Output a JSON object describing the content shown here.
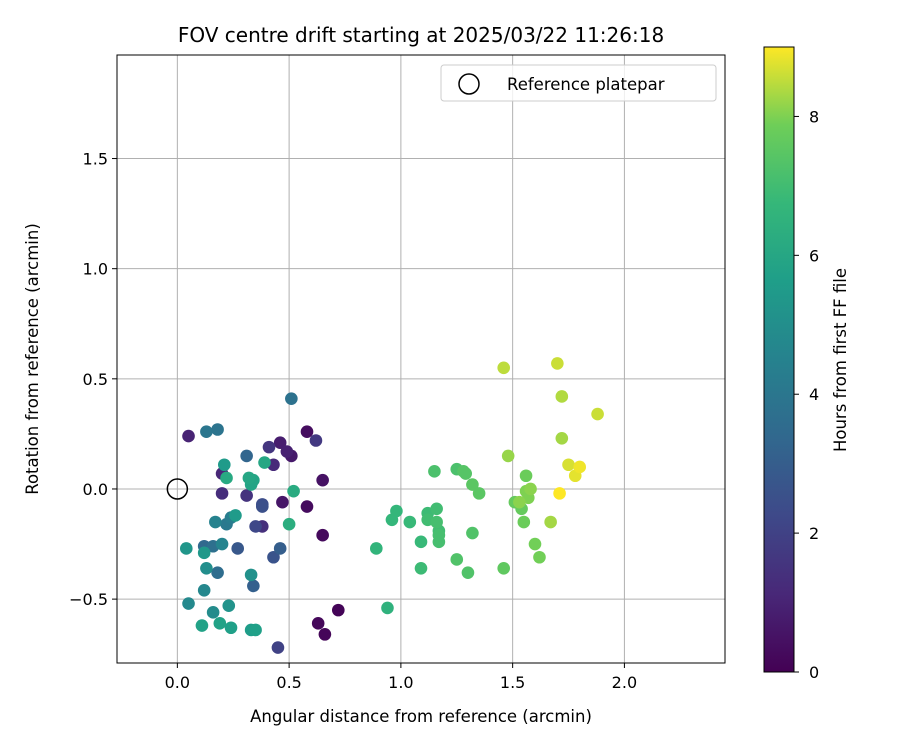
{
  "chart_data": {
    "type": "scatter",
    "title": "FOV centre drift starting at 2025/03/22 11:26:18",
    "xlabel": "Angular distance from reference (arcmin)",
    "ylabel": "Rotation from reference (arcmin)",
    "colorbar_label": "Hours from first FF file",
    "xlim": [
      -0.27,
      2.45
    ],
    "ylim": [
      -0.79,
      1.97
    ],
    "clim": [
      0,
      9
    ],
    "colormap": "viridis",
    "grid": true,
    "legend_position": "upper right",
    "x_ticks": [
      0.0,
      0.5,
      1.0,
      1.5,
      2.0
    ],
    "x_tick_labels": [
      "0.0",
      "0.5",
      "1.0",
      "1.5",
      "2.0"
    ],
    "y_ticks": [
      -0.5,
      0.0,
      0.5,
      1.0,
      1.5
    ],
    "y_tick_labels": [
      "−0.5",
      "0.0",
      "0.5",
      "1.0",
      "1.5"
    ],
    "colorbar_ticks": [
      0,
      2,
      4,
      6,
      8
    ],
    "colorbar_tick_labels": [
      "0",
      "2",
      "4",
      "6",
      "8"
    ],
    "reference": {
      "label": "Reference platepar",
      "x": 0.0,
      "y": 0.0
    },
    "points": [
      {
        "x": 0.72,
        "y": -0.55,
        "h": 0.1
      },
      {
        "x": 0.66,
        "y": -0.66,
        "h": 0.15
      },
      {
        "x": 0.63,
        "y": -0.61,
        "h": 0.2
      },
      {
        "x": 0.65,
        "y": -0.21,
        "h": 0.25
      },
      {
        "x": 0.58,
        "y": -0.08,
        "h": 0.3
      },
      {
        "x": 0.58,
        "y": 0.26,
        "h": 0.35
      },
      {
        "x": 0.65,
        "y": 0.04,
        "h": 0.5
      },
      {
        "x": 0.47,
        "y": -0.06,
        "h": 0.6
      },
      {
        "x": 0.51,
        "y": 0.15,
        "h": 0.7
      },
      {
        "x": 0.46,
        "y": 0.21,
        "h": 0.8
      },
      {
        "x": 0.49,
        "y": 0.17,
        "h": 0.9
      },
      {
        "x": 0.05,
        "y": 0.24,
        "h": 1.0
      },
      {
        "x": 0.2,
        "y": 0.07,
        "h": 1.1
      },
      {
        "x": 0.43,
        "y": 0.11,
        "h": 1.2
      },
      {
        "x": 0.2,
        "y": -0.02,
        "h": 1.3
      },
      {
        "x": 0.38,
        "y": -0.17,
        "h": 1.4
      },
      {
        "x": 0.31,
        "y": -0.03,
        "h": 1.5
      },
      {
        "x": 0.41,
        "y": 0.19,
        "h": 1.6
      },
      {
        "x": 0.62,
        "y": 0.22,
        "h": 1.7
      },
      {
        "x": 0.45,
        "y": -0.72,
        "h": 2.0
      },
      {
        "x": 0.35,
        "y": -0.17,
        "h": 2.2
      },
      {
        "x": 0.38,
        "y": -0.07,
        "h": 2.4
      },
      {
        "x": 0.38,
        "y": -0.08,
        "h": 2.5
      },
      {
        "x": 0.43,
        "y": -0.31,
        "h": 2.6
      },
      {
        "x": 0.27,
        "y": -0.27,
        "h": 2.8
      },
      {
        "x": 0.46,
        "y": -0.27,
        "h": 3.0
      },
      {
        "x": 0.34,
        "y": -0.44,
        "h": 3.1
      },
      {
        "x": 0.31,
        "y": 0.15,
        "h": 3.3
      },
      {
        "x": 0.12,
        "y": -0.26,
        "h": 3.4
      },
      {
        "x": 0.18,
        "y": -0.38,
        "h": 3.6
      },
      {
        "x": 0.16,
        "y": -0.26,
        "h": 3.7
      },
      {
        "x": 0.51,
        "y": 0.41,
        "h": 3.8
      },
      {
        "x": 0.18,
        "y": 0.27,
        "h": 3.9
      },
      {
        "x": 0.13,
        "y": 0.26,
        "h": 4.0
      },
      {
        "x": 0.22,
        "y": -0.16,
        "h": 4.1
      },
      {
        "x": 0.24,
        "y": -0.13,
        "h": 4.3
      },
      {
        "x": 0.17,
        "y": -0.15,
        "h": 4.5
      },
      {
        "x": 0.2,
        "y": -0.25,
        "h": 4.6
      },
      {
        "x": 0.12,
        "y": -0.46,
        "h": 4.7
      },
      {
        "x": 0.05,
        "y": -0.52,
        "h": 4.8
      },
      {
        "x": 0.16,
        "y": -0.56,
        "h": 4.9
      },
      {
        "x": 0.13,
        "y": -0.36,
        "h": 5.0
      },
      {
        "x": 0.33,
        "y": -0.39,
        "h": 5.1
      },
      {
        "x": 0.23,
        "y": -0.53,
        "h": 5.2
      },
      {
        "x": 0.04,
        "y": -0.27,
        "h": 5.3
      },
      {
        "x": 0.12,
        "y": -0.29,
        "h": 5.4
      },
      {
        "x": 0.21,
        "y": 0.11,
        "h": 5.5
      },
      {
        "x": 0.26,
        "y": -0.12,
        "h": 5.5
      },
      {
        "x": 0.33,
        "y": -0.64,
        "h": 5.6
      },
      {
        "x": 0.35,
        "y": -0.64,
        "h": 5.7
      },
      {
        "x": 0.24,
        "y": -0.63,
        "h": 5.7
      },
      {
        "x": 0.19,
        "y": -0.61,
        "h": 5.8
      },
      {
        "x": 0.11,
        "y": -0.62,
        "h": 5.8
      },
      {
        "x": 0.33,
        "y": 0.02,
        "h": 5.9
      },
      {
        "x": 0.34,
        "y": 0.04,
        "h": 5.9
      },
      {
        "x": 0.32,
        "y": 0.05,
        "h": 6.0
      },
      {
        "x": 0.39,
        "y": 0.12,
        "h": 6.0
      },
      {
        "x": 0.22,
        "y": 0.05,
        "h": 6.1
      },
      {
        "x": 0.52,
        "y": -0.01,
        "h": 6.2
      },
      {
        "x": 0.5,
        "y": -0.16,
        "h": 6.3
      },
      {
        "x": 0.94,
        "y": -0.54,
        "h": 6.5
      },
      {
        "x": 0.89,
        "y": -0.27,
        "h": 6.6
      },
      {
        "x": 0.96,
        "y": -0.14,
        "h": 6.7
      },
      {
        "x": 0.98,
        "y": -0.1,
        "h": 6.7
      },
      {
        "x": 1.04,
        "y": -0.15,
        "h": 6.8
      },
      {
        "x": 1.09,
        "y": -0.24,
        "h": 6.8
      },
      {
        "x": 1.09,
        "y": -0.36,
        "h": 6.9
      },
      {
        "x": 1.12,
        "y": -0.11,
        "h": 6.9
      },
      {
        "x": 1.12,
        "y": -0.14,
        "h": 7.0
      },
      {
        "x": 1.16,
        "y": -0.09,
        "h": 7.0
      },
      {
        "x": 1.17,
        "y": -0.19,
        "h": 7.0
      },
      {
        "x": 1.17,
        "y": -0.24,
        "h": 7.1
      },
      {
        "x": 1.16,
        "y": -0.15,
        "h": 7.1
      },
      {
        "x": 1.17,
        "y": -0.21,
        "h": 7.1
      },
      {
        "x": 1.15,
        "y": 0.08,
        "h": 7.2
      },
      {
        "x": 1.25,
        "y": 0.09,
        "h": 7.2
      },
      {
        "x": 1.25,
        "y": -0.32,
        "h": 7.3
      },
      {
        "x": 1.3,
        "y": -0.38,
        "h": 7.3
      },
      {
        "x": 1.32,
        "y": -0.2,
        "h": 7.3
      },
      {
        "x": 1.29,
        "y": 0.07,
        "h": 7.4
      },
      {
        "x": 1.28,
        "y": 0.08,
        "h": 7.4
      },
      {
        "x": 1.32,
        "y": 0.02,
        "h": 7.5
      },
      {
        "x": 1.35,
        "y": -0.02,
        "h": 7.5
      },
      {
        "x": 1.46,
        "y": -0.36,
        "h": 7.6
      },
      {
        "x": 1.51,
        "y": -0.06,
        "h": 7.7
      },
      {
        "x": 1.54,
        "y": -0.09,
        "h": 7.7
      },
      {
        "x": 1.55,
        "y": -0.15,
        "h": 7.8
      },
      {
        "x": 1.56,
        "y": 0.06,
        "h": 7.8
      },
      {
        "x": 1.6,
        "y": -0.25,
        "h": 7.9
      },
      {
        "x": 1.62,
        "y": -0.31,
        "h": 7.9
      },
      {
        "x": 1.56,
        "y": -0.01,
        "h": 8.0
      },
      {
        "x": 1.57,
        "y": -0.04,
        "h": 8.0
      },
      {
        "x": 1.53,
        "y": -0.06,
        "h": 8.1
      },
      {
        "x": 1.58,
        "y": 0.0,
        "h": 8.1
      },
      {
        "x": 1.48,
        "y": 0.15,
        "h": 8.2
      },
      {
        "x": 1.67,
        "y": -0.15,
        "h": 8.3
      },
      {
        "x": 1.72,
        "y": 0.23,
        "h": 8.3
      },
      {
        "x": 1.72,
        "y": 0.42,
        "h": 8.4
      },
      {
        "x": 1.46,
        "y": 0.55,
        "h": 8.5
      },
      {
        "x": 1.7,
        "y": 0.57,
        "h": 8.6
      },
      {
        "x": 1.88,
        "y": 0.34,
        "h": 8.6
      },
      {
        "x": 1.75,
        "y": 0.11,
        "h": 8.7
      },
      {
        "x": 1.78,
        "y": 0.06,
        "h": 8.8
      },
      {
        "x": 1.8,
        "y": 0.1,
        "h": 8.9
      },
      {
        "x": 1.71,
        "y": -0.02,
        "h": 9.0
      }
    ]
  }
}
